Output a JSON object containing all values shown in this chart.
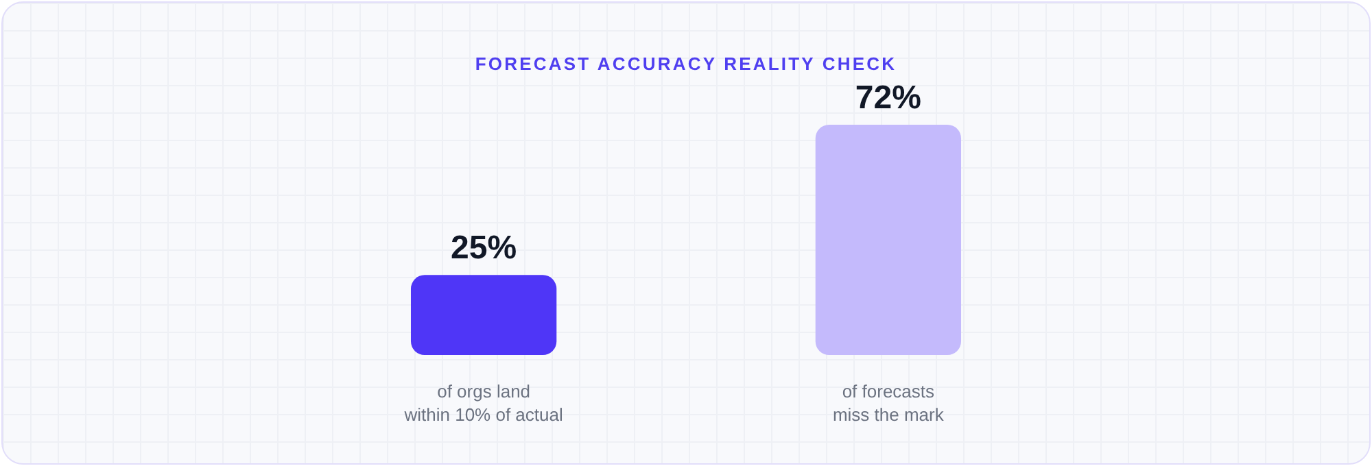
{
  "chart_data": {
    "type": "bar",
    "title": "FORECAST ACCURACY REALITY CHECK",
    "categories": [
      "of orgs land\nwithin 10% of actual",
      "of forecasts\nmiss the mark"
    ],
    "values": [
      25,
      72
    ],
    "colors": [
      "#4f36f7",
      "#c4bafc"
    ],
    "value_labels": [
      "25%",
      "72%"
    ]
  }
}
